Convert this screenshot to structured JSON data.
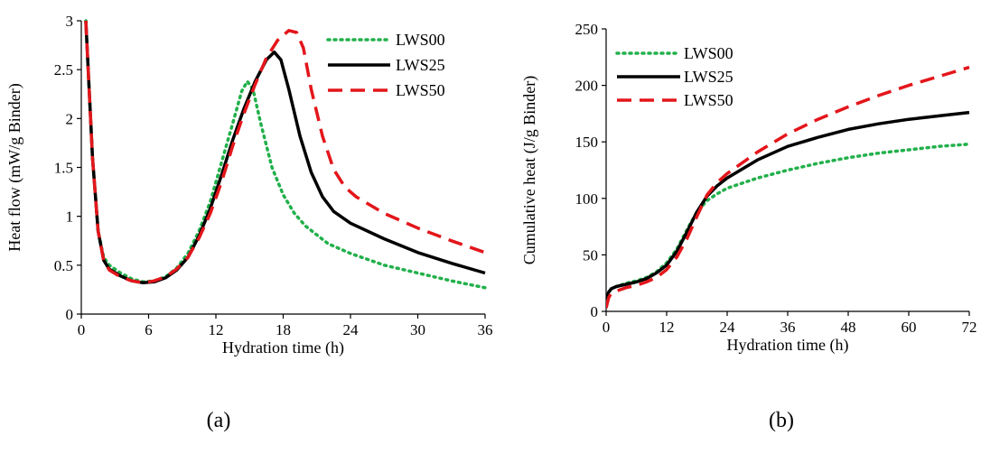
{
  "colors": {
    "LWS00": "#22b04b",
    "LWS25": "#000000",
    "LWS50": "#e3161b"
  },
  "chart_data": [
    {
      "type": "line",
      "caption": "(a)",
      "xlabel": "Hydration time (h)",
      "ylabel": "Heat flow (mW/g Binder)",
      "xlim": [
        0,
        36
      ],
      "ylim": [
        0,
        3
      ],
      "xticks": [
        0,
        6,
        12,
        18,
        24,
        30,
        36
      ],
      "yticks": [
        0,
        0.5,
        1,
        1.5,
        2,
        2.5,
        3
      ],
      "xtick_labels": [
        "0",
        "6",
        "12",
        "18",
        "24",
        "30",
        "36"
      ],
      "ytick_labels": [
        "0",
        "0.5",
        "1",
        "1.5",
        "2",
        "2.5",
        "3"
      ],
      "legend_position": "top-right",
      "series": [
        {
          "name": "LWS00",
          "style": "dotted",
          "points": [
            [
              0.4,
              3.0
            ],
            [
              0.7,
              2.3
            ],
            [
              1.0,
              1.6
            ],
            [
              1.5,
              0.85
            ],
            [
              2.0,
              0.58
            ],
            [
              2.5,
              0.5
            ],
            [
              3.5,
              0.42
            ],
            [
              4.5,
              0.36
            ],
            [
              5.5,
              0.33
            ],
            [
              6.5,
              0.34
            ],
            [
              7.5,
              0.38
            ],
            [
              8.5,
              0.47
            ],
            [
              9.5,
              0.62
            ],
            [
              10.5,
              0.85
            ],
            [
              11.5,
              1.15
            ],
            [
              12.5,
              1.55
            ],
            [
              13.5,
              1.95
            ],
            [
              14.3,
              2.28
            ],
            [
              14.8,
              2.38
            ],
            [
              15.3,
              2.3
            ],
            [
              16.0,
              1.95
            ],
            [
              17.0,
              1.5
            ],
            [
              18.0,
              1.22
            ],
            [
              19.0,
              1.03
            ],
            [
              20.0,
              0.9
            ],
            [
              22.0,
              0.72
            ],
            [
              24.0,
              0.62
            ],
            [
              27.0,
              0.5
            ],
            [
              30.0,
              0.42
            ],
            [
              33.0,
              0.34
            ],
            [
              36.0,
              0.27
            ]
          ]
        },
        {
          "name": "LWS25",
          "style": "solid",
          "points": [
            [
              0.4,
              3.0
            ],
            [
              0.7,
              2.3
            ],
            [
              1.0,
              1.6
            ],
            [
              1.5,
              0.85
            ],
            [
              2.0,
              0.55
            ],
            [
              2.5,
              0.46
            ],
            [
              3.5,
              0.39
            ],
            [
              4.5,
              0.34
            ],
            [
              5.5,
              0.32
            ],
            [
              6.5,
              0.33
            ],
            [
              7.5,
              0.37
            ],
            [
              8.5,
              0.45
            ],
            [
              9.5,
              0.58
            ],
            [
              10.5,
              0.8
            ],
            [
              11.5,
              1.08
            ],
            [
              12.5,
              1.42
            ],
            [
              13.5,
              1.78
            ],
            [
              14.5,
              2.1
            ],
            [
              15.5,
              2.38
            ],
            [
              16.5,
              2.6
            ],
            [
              17.2,
              2.68
            ],
            [
              17.8,
              2.6
            ],
            [
              18.5,
              2.3
            ],
            [
              19.5,
              1.82
            ],
            [
              20.5,
              1.45
            ],
            [
              21.5,
              1.2
            ],
            [
              22.5,
              1.05
            ],
            [
              24.0,
              0.93
            ],
            [
              27.0,
              0.77
            ],
            [
              30.0,
              0.63
            ],
            [
              33.0,
              0.52
            ],
            [
              36.0,
              0.42
            ]
          ]
        },
        {
          "name": "LWS50",
          "style": "dashed",
          "points": [
            [
              0.4,
              3.0
            ],
            [
              0.7,
              2.3
            ],
            [
              1.0,
              1.6
            ],
            [
              1.5,
              0.85
            ],
            [
              2.0,
              0.55
            ],
            [
              2.5,
              0.45
            ],
            [
              3.5,
              0.38
            ],
            [
              4.5,
              0.34
            ],
            [
              5.5,
              0.32
            ],
            [
              6.5,
              0.34
            ],
            [
              7.5,
              0.38
            ],
            [
              8.5,
              0.46
            ],
            [
              9.5,
              0.58
            ],
            [
              10.5,
              0.78
            ],
            [
              11.5,
              1.03
            ],
            [
              12.5,
              1.35
            ],
            [
              13.5,
              1.72
            ],
            [
              14.5,
              2.05
            ],
            [
              15.5,
              2.35
            ],
            [
              16.5,
              2.62
            ],
            [
              17.5,
              2.8
            ],
            [
              18.5,
              2.9
            ],
            [
              19.2,
              2.88
            ],
            [
              19.8,
              2.72
            ],
            [
              20.5,
              2.3
            ],
            [
              21.5,
              1.82
            ],
            [
              22.5,
              1.48
            ],
            [
              23.5,
              1.3
            ],
            [
              24.5,
              1.2
            ],
            [
              27.0,
              1.03
            ],
            [
              30.0,
              0.88
            ],
            [
              33.0,
              0.75
            ],
            [
              36.0,
              0.63
            ]
          ]
        }
      ]
    },
    {
      "type": "line",
      "caption": "(b)",
      "xlabel": "Hydration time (h)",
      "ylabel": "Cumulative heat (J/g Binder)",
      "xlim": [
        0,
        72
      ],
      "ylim": [
        0,
        250
      ],
      "xticks": [
        0,
        12,
        24,
        36,
        48,
        60,
        72
      ],
      "yticks": [
        0,
        50,
        100,
        150,
        200,
        250
      ],
      "xtick_labels": [
        "0",
        "12",
        "24",
        "36",
        "48",
        "60",
        "72"
      ],
      "ytick_labels": [
        "0",
        "50",
        "100",
        "150",
        "200",
        "250"
      ],
      "legend_position": "top-left",
      "series": [
        {
          "name": "LWS00",
          "style": "dotted",
          "points": [
            [
              0.0,
              8
            ],
            [
              0.5,
              16
            ],
            [
              1.0,
              20
            ],
            [
              2.0,
              22
            ],
            [
              4.0,
              25
            ],
            [
              6.0,
              27
            ],
            [
              8.0,
              30
            ],
            [
              10.0,
              35
            ],
            [
              12.0,
              43
            ],
            [
              14.0,
              55
            ],
            [
              16.0,
              72
            ],
            [
              18.0,
              88
            ],
            [
              20.0,
              98
            ],
            [
              22.0,
              104
            ],
            [
              24.0,
              109
            ],
            [
              30.0,
              118
            ],
            [
              36.0,
              125
            ],
            [
              42.0,
              131
            ],
            [
              48.0,
              136
            ],
            [
              54.0,
              140
            ],
            [
              60.0,
              143
            ],
            [
              66.0,
              146
            ],
            [
              72.0,
              148
            ]
          ]
        },
        {
          "name": "LWS25",
          "style": "solid",
          "points": [
            [
              0.0,
              10
            ],
            [
              0.5,
              17
            ],
            [
              1.0,
              20
            ],
            [
              2.0,
              22
            ],
            [
              4.0,
              24
            ],
            [
              6.0,
              26
            ],
            [
              8.0,
              29
            ],
            [
              10.0,
              34
            ],
            [
              12.0,
              41
            ],
            [
              14.0,
              53
            ],
            [
              16.0,
              70
            ],
            [
              18.0,
              88
            ],
            [
              20.0,
              102
            ],
            [
              22.0,
              111
            ],
            [
              24.0,
              118
            ],
            [
              30.0,
              134
            ],
            [
              36.0,
              146
            ],
            [
              42.0,
              154
            ],
            [
              48.0,
              161
            ],
            [
              54.0,
              166
            ],
            [
              60.0,
              170
            ],
            [
              66.0,
              173
            ],
            [
              72.0,
              176
            ]
          ]
        },
        {
          "name": "LWS50",
          "style": "dashed",
          "points": [
            [
              0.0,
              3
            ],
            [
              0.5,
              12
            ],
            [
              1.0,
              16
            ],
            [
              2.0,
              18
            ],
            [
              4.0,
              21
            ],
            [
              6.0,
              23
            ],
            [
              8.0,
              26
            ],
            [
              10.0,
              30
            ],
            [
              12.0,
              37
            ],
            [
              14.0,
              48
            ],
            [
              16.0,
              64
            ],
            [
              18.0,
              84
            ],
            [
              20.0,
              103
            ],
            [
              22.0,
              114
            ],
            [
              24.0,
              122
            ],
            [
              30.0,
              141
            ],
            [
              36.0,
              157
            ],
            [
              42.0,
              170
            ],
            [
              48.0,
              181
            ],
            [
              54.0,
              191
            ],
            [
              60.0,
              200
            ],
            [
              66.0,
              208
            ],
            [
              72.0,
              216
            ]
          ]
        }
      ]
    }
  ]
}
